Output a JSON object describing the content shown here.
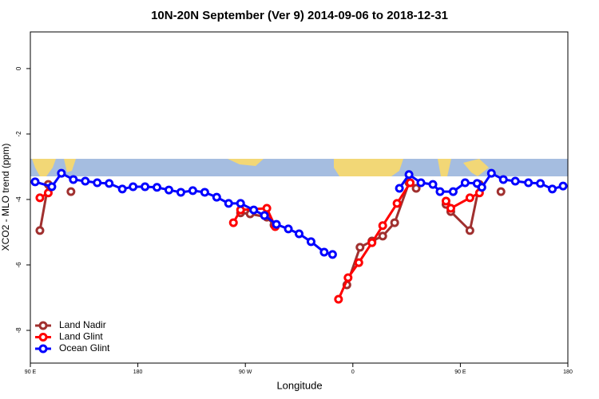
{
  "chart_data": {
    "type": "line",
    "title": "10N-20N September (Ver 9)   2014-09-06 to 2018-12-31",
    "x_label": "Longitude",
    "y_label": "XCO2 - MLO trend (ppm)",
    "xlim": [
      90,
      540
    ],
    "ylim": [
      -9.0,
      1.12
    ],
    "xticks": [
      {
        "value": 90,
        "label": "90 E"
      },
      180,
      {
        "value": 270,
        "label": "90 W"
      },
      {
        "value": 360,
        "label": "0"
      },
      {
        "value": 450,
        "label": "90 E"
      },
      {
        "value": 540,
        "label": "180"
      }
    ],
    "yticks": [
      0,
      -2,
      -4,
      -6,
      -8
    ],
    "legend": "bottom-left",
    "series": [
      {
        "name": "Land Nadir",
        "color": "#a0302f",
        "x": [
          98,
          105,
          null,
          124,
          null,
          266,
          274,
          288,
          294,
          null,
          355,
          366,
          376,
          385,
          395,
          407,
          413,
          null,
          438,
          442,
          458,
          466,
          null,
          484
        ],
        "values": [
          -4.95,
          -3.54,
          null,
          -3.76,
          null,
          -4.41,
          -4.44,
          -4.54,
          -4.78,
          null,
          -6.61,
          -5.46,
          -5.27,
          -5.12,
          -4.71,
          -3.49,
          -3.66,
          null,
          -4.15,
          -4.37,
          -4.95,
          -3.54,
          null,
          -3.76
        ]
      },
      {
        "name": "Land Glint",
        "color": "#ff0000",
        "x": [
          98,
          105,
          null,
          260,
          266,
          288,
          295,
          null,
          348,
          356,
          365,
          376,
          385,
          397,
          408,
          null,
          438,
          442,
          458,
          466
        ],
        "values": [
          -3.95,
          -3.8,
          null,
          -4.71,
          -4.32,
          -4.27,
          -4.83,
          null,
          -7.05,
          -6.39,
          -5.93,
          -5.32,
          -4.8,
          -4.12,
          -3.49,
          null,
          -4.05,
          -4.27,
          -3.95,
          -3.8
        ]
      },
      {
        "name": "Ocean Glint",
        "color": "#0000ff",
        "x": [
          94,
          108,
          116,
          126,
          136,
          146,
          156,
          167,
          176,
          186,
          196,
          206,
          216,
          226,
          236,
          246,
          256,
          266,
          277,
          286,
          296,
          306,
          315,
          325,
          336,
          343,
          null,
          399,
          407,
          417,
          427,
          433,
          444,
          454,
          464,
          468,
          476,
          486,
          496,
          507,
          517,
          527,
          536
        ],
        "values": [
          -3.46,
          -3.61,
          -3.2,
          -3.39,
          -3.44,
          -3.49,
          -3.51,
          -3.68,
          -3.61,
          -3.61,
          -3.63,
          -3.71,
          -3.78,
          -3.73,
          -3.78,
          -3.93,
          -4.12,
          -4.12,
          -4.32,
          -4.49,
          -4.76,
          -4.9,
          -5.05,
          -5.29,
          -5.61,
          -5.68,
          null,
          -3.66,
          -3.24,
          -3.49,
          -3.54,
          -3.76,
          -3.76,
          -3.49,
          -3.51,
          -3.63,
          -3.2,
          -3.39,
          -3.44,
          -3.49,
          -3.51,
          -3.68,
          -3.59
        ]
      }
    ]
  }
}
